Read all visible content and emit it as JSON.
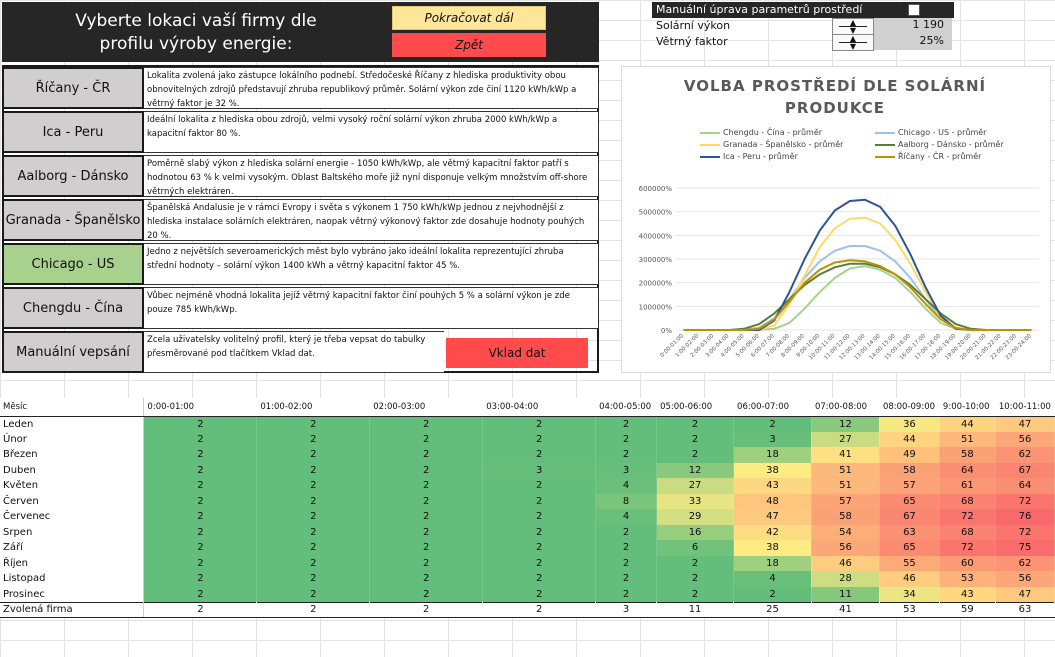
{
  "header": {
    "title_line1": "Vyberte lokaci vaší firmy dle",
    "title_line2": "profilu výroby energie:",
    "continue_label": "Pokračovat dál",
    "back_label": "Zpět"
  },
  "manual_params": {
    "heading": "Manuální úprava parametrů prostředí",
    "rows": [
      {
        "label": "Solární výkon",
        "value": "1 190"
      },
      {
        "label": "Větrný faktor",
        "value": "25%"
      }
    ]
  },
  "locations": [
    {
      "name": "Říčany - ČR",
      "desc": "Lokalita zvolená jako zástupce lokálního podnebí. Středočeské Říčany z hlediska produktivity obou obnovitelných zdrojů představují zhruba republikový průměr. Solární výkon zde činí 1120 kWh/kWp a větrný faktor je 32 %."
    },
    {
      "name": "Ica - Peru",
      "desc": "Ideální lokalita z hlediska obou zdrojů, velmi vysoký roční solární výkon zhruba 2000 kWh/kWp a kapacitní faktor 80 %."
    },
    {
      "name": "Aalborg - Dánsko",
      "desc": "Poměrně slabý výkon z hlediska solární energie - 1050 kWh/kWp, ale větrný kapacitní faktor patří s hodnotou 63 % k velmi vysokým. Oblast Baltského moře již nyní disponuje velkým množstvím off-shore větrných elektráren."
    },
    {
      "name": "Granada - Španělsko",
      "desc": "Španělská Andalusie je v rámci Evropy i světa s výkonem 1 750 kWh/kWp jednou z nejvhodnější z hlediska instalace solárních elektráren, naopak větrný výkonový faktor zde dosahuje hodnoty pouhých 20 %."
    },
    {
      "name": "Chicago - US",
      "desc": "Jedno z největších severoamerických měst bylo vybráno jako ideální lokalita reprezentující zhruba střední hodnoty – solární výkon 1400 kWh a větrný kapacitní faktor 45 %."
    },
    {
      "name": "Chengdu - Čína",
      "desc": "Vůbec nejméně vhodná lokalita jejíž větrný kapacitní faktor činí pouhých 5 % a solární výkon je zde pouze 785 kWh/kWp."
    },
    {
      "name": "Manuální vepsání",
      "desc": "Zcela uživatelsky volitelný profil, který je třeba vepsat do tabulky přesměrované pod tlačítkem Vklad dat."
    }
  ],
  "input_button_label": "Vklad dat",
  "chart_data": {
    "type": "line",
    "title": "VOLBA PROSTŘEDÍ DLE SOLÁRNÍ PRODUKCE",
    "ylim": [
      0,
      600
    ],
    "y_ticks": [
      "0%",
      "100000%",
      "200000%",
      "300000%",
      "400000%",
      "500000%",
      "600000%"
    ],
    "x": [
      "0:00-01:00",
      "1:00-02:00",
      "2:00-03:00",
      "3:00-04:00",
      "4:00-05:00",
      "5:00-06:00",
      "6:00-07:00",
      "7:00-08:00",
      "8:00-09:00",
      "9:00-10:00",
      "10:00-11:00",
      "11:00-12:00",
      "12:00-13:00",
      "13:00-14:00",
      "14:00-15:00",
      "15:00-16:00",
      "16:00-17:00",
      "17:00-18:00",
      "18:00-19:00",
      "19:00-20:00",
      "20:00-21:00",
      "21:00-22:00",
      "22:00-23:00",
      "23:00-24:00"
    ],
    "legend_placement": "top",
    "series": [
      {
        "name": "Chengdu - Čína - průměr",
        "color": "#a9d18e",
        "values": [
          0,
          0,
          0,
          0,
          0,
          0,
          5,
          30,
          90,
          160,
          220,
          260,
          270,
          255,
          220,
          160,
          90,
          30,
          5,
          0,
          0,
          0,
          0,
          0
        ]
      },
      {
        "name": "Chicago - US - průměr",
        "color": "#9dc3e6",
        "values": [
          0,
          0,
          0,
          0,
          0,
          10,
          50,
          130,
          220,
          290,
          335,
          355,
          355,
          335,
          290,
          220,
          130,
          50,
          10,
          0,
          0,
          0,
          0,
          0
        ]
      },
      {
        "name": "Granada - Španělsko - průměr",
        "color": "#ffd966",
        "values": [
          0,
          0,
          0,
          0,
          0,
          0,
          20,
          110,
          230,
          350,
          430,
          470,
          475,
          450,
          380,
          280,
          160,
          50,
          8,
          0,
          0,
          0,
          0,
          0
        ]
      },
      {
        "name": "Aalborg - Dánsko - průměr",
        "color": "#548235",
        "values": [
          0,
          0,
          0,
          0,
          5,
          25,
          70,
          130,
          190,
          235,
          265,
          280,
          280,
          265,
          235,
          190,
          130,
          70,
          25,
          5,
          0,
          0,
          0,
          0
        ]
      },
      {
        "name": "Ica - Peru - průměr",
        "color": "#2f5597",
        "values": [
          0,
          0,
          0,
          0,
          0,
          0,
          40,
          160,
          300,
          420,
          505,
          545,
          550,
          520,
          440,
          320,
          180,
          60,
          5,
          0,
          0,
          0,
          0,
          0
        ]
      },
      {
        "name": "Říčany - ČR - průměr",
        "color": "#bf9000",
        "values": [
          0,
          0,
          0,
          0,
          0,
          5,
          45,
          120,
          200,
          255,
          285,
          295,
          290,
          270,
          235,
          180,
          110,
          45,
          8,
          0,
          0,
          0,
          0,
          0
        ]
      }
    ]
  },
  "table": {
    "col_header_month": "Měsíc",
    "hours": [
      "0:00-01:00",
      "01:00-02:00",
      "02:00-03:00",
      "03:00-04:00",
      "04:00-05:00",
      "05:00-06:00",
      "06:00-07:00",
      "07:00-08:00",
      "08:00-09:00",
      "9:00-10:00",
      "10:00-11:00"
    ],
    "rows": [
      {
        "month": "Leden",
        "values": [
          2,
          2,
          2,
          2,
          2,
          2,
          2,
          12,
          36,
          44,
          47
        ]
      },
      {
        "month": "Únor",
        "values": [
          2,
          2,
          2,
          2,
          2,
          2,
          3,
          27,
          44,
          51,
          56
        ]
      },
      {
        "month": "Březen",
        "values": [
          2,
          2,
          2,
          2,
          2,
          2,
          18,
          41,
          49,
          58,
          62
        ]
      },
      {
        "month": "Duben",
        "values": [
          2,
          2,
          2,
          3,
          3,
          12,
          38,
          51,
          58,
          64,
          67
        ]
      },
      {
        "month": "Květen",
        "values": [
          2,
          2,
          2,
          2,
          4,
          27,
          43,
          51,
          57,
          61,
          64
        ]
      },
      {
        "month": "Červen",
        "values": [
          2,
          2,
          2,
          2,
          8,
          33,
          48,
          57,
          65,
          68,
          72
        ]
      },
      {
        "month": "Červenec",
        "values": [
          2,
          2,
          2,
          2,
          4,
          29,
          47,
          58,
          67,
          72,
          76
        ]
      },
      {
        "month": "Srpen",
        "values": [
          2,
          2,
          2,
          2,
          2,
          16,
          42,
          54,
          63,
          68,
          72
        ]
      },
      {
        "month": "Září",
        "values": [
          2,
          2,
          2,
          2,
          2,
          6,
          38,
          56,
          65,
          72,
          75
        ]
      },
      {
        "month": "Říjen",
        "values": [
          2,
          2,
          2,
          2,
          2,
          2,
          18,
          46,
          55,
          60,
          62
        ]
      },
      {
        "month": "Listopad",
        "values": [
          2,
          2,
          2,
          2,
          2,
          2,
          4,
          28,
          46,
          53,
          56
        ]
      },
      {
        "month": "Prosinec",
        "values": [
          2,
          2,
          2,
          2,
          2,
          2,
          2,
          11,
          34,
          43,
          47
        ]
      }
    ],
    "footer": {
      "label": "Zvolená firma",
      "values": [
        2,
        2,
        2,
        2,
        3,
        11,
        25,
        41,
        53,
        59,
        63
      ]
    }
  }
}
